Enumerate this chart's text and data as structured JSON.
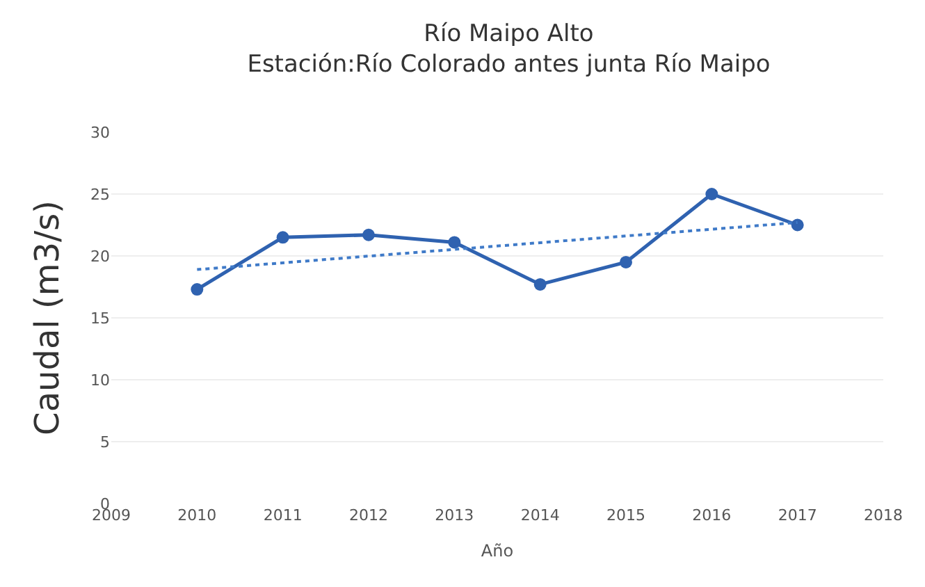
{
  "chart_data": {
    "type": "line",
    "title": "Río Maipo Alto",
    "subtitle": "Estación:Río Colorado antes junta Río Maipo",
    "xlabel": "Año",
    "ylabel": "Caudal (m3/s)",
    "x": [
      2010,
      2011,
      2012,
      2013,
      2014,
      2015,
      2016,
      2017
    ],
    "series": [
      {
        "color": "#2f62b0",
        "values": [
          17.3,
          21.5,
          21.7,
          21.1,
          17.7,
          19.5,
          25.0,
          22.5
        ],
        "marker": "circle",
        "line_style": "solid"
      },
      {
        "type": "line",
        "color": "#3f7ac8",
        "x": [
          2010,
          2017
        ],
        "values": [
          18.9,
          22.7
        ],
        "marker": "none",
        "line_style": "dotted"
      }
    ],
    "xlim": [
      2009,
      2018
    ],
    "xticks": [
      2009,
      2010,
      2011,
      2012,
      2013,
      2014,
      2015,
      2016,
      2017,
      2018
    ],
    "ylim": [
      0,
      30
    ],
    "yticks": [
      0,
      5,
      10,
      15,
      20,
      25,
      30
    ],
    "grid": "y"
  }
}
